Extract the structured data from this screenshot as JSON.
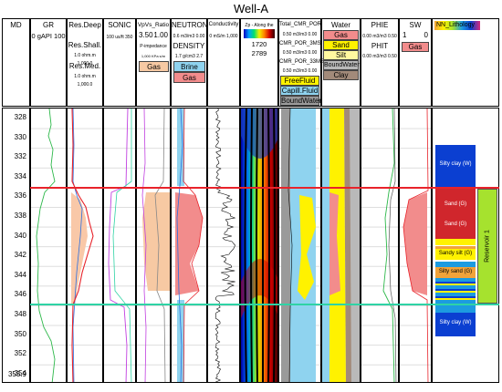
{
  "title": "Well-A",
  "headers": {
    "md": "MD",
    "gr": {
      "name": "GR",
      "scale": "0 gAPI 100"
    },
    "res": {
      "deep": "Res.Deep",
      "shall": "Res.Shall.",
      "shall_scale": "1.0 ohm.m 1,000.0",
      "med": "Res.Med.",
      "med_scale": "1.0 ohm.m 1,000.0"
    },
    "sonic": {
      "name": "SONIC",
      "scale": "100 us/ft 350"
    },
    "vpvs": {
      "name": "VpVs_Ratio",
      "min": "3.50",
      "max": "1.00",
      "pimp": "P-impedance",
      "pimp_scale": "1,000 KPa s/m 1,000",
      "gas": "Gas"
    },
    "neutron": {
      "name": "NEUTRON",
      "scale": "0.6 m3/m3 0.00",
      "density": "DENSITY",
      "density_scale": "1.7 g/cm3 2.7",
      "brine": "Brine",
      "gas": "Gas"
    },
    "cond": {
      "name": "Conductivity",
      "scale": "0 mS/m 1,000"
    },
    "zp": {
      "name": "Zp - Along the well",
      "min": "1720",
      "max": "2789"
    },
    "cmr": {
      "name": "Total_CMR_POR",
      "scale": "0.50 m3/m3 0.00",
      "c3": "CMR_POR_3MS",
      "c3_scale": "0.50 m3/m3 0.00",
      "c33": "CMR_POR_33MS",
      "c33_scale": "0.50 m3/m3 0.00",
      "free": "FreeFluid",
      "cap": "Capill.Fluid",
      "bound": "BoundWater"
    },
    "water": {
      "name": "Water",
      "gas": "Gas",
      "sand": "Sand",
      "silt": "Silt",
      "bw": "BoundWater",
      "clay": "Clay"
    },
    "phie": {
      "name": "PHIE",
      "scale": "0.00 m3/m3 0.50",
      "phit": "PHIT",
      "phit_scale": "0.00 m3/m3 0.50"
    },
    "sw": {
      "name": "SW",
      "min": "1",
      "max": "0",
      "gas": "Gas"
    },
    "nn": {
      "name": "NN_Lithology"
    }
  },
  "depths": [
    "328",
    "330",
    "332",
    "334",
    "336",
    "338",
    "340",
    "342",
    "344",
    "346",
    "348",
    "350",
    "352",
    "354",
    "355.9"
  ],
  "lithology": {
    "units": [
      "Silty clay (W)",
      "Sand (G)",
      "Sand (G)",
      "Sandy silt (G)",
      "Silty sand (G)",
      "Silty clay (W)"
    ],
    "reservoir_label": "Reservoir 1"
  },
  "colors": {
    "red_line": "#e8232a",
    "green_line": "#2fd3a5",
    "gas": "#f7c9a3",
    "brine": "#8fd3ef",
    "clay": "#f28c8c",
    "sand": "#fff200",
    "litho_blue": "#0b3fd1",
    "reservoir": "#a6e22e"
  }
}
